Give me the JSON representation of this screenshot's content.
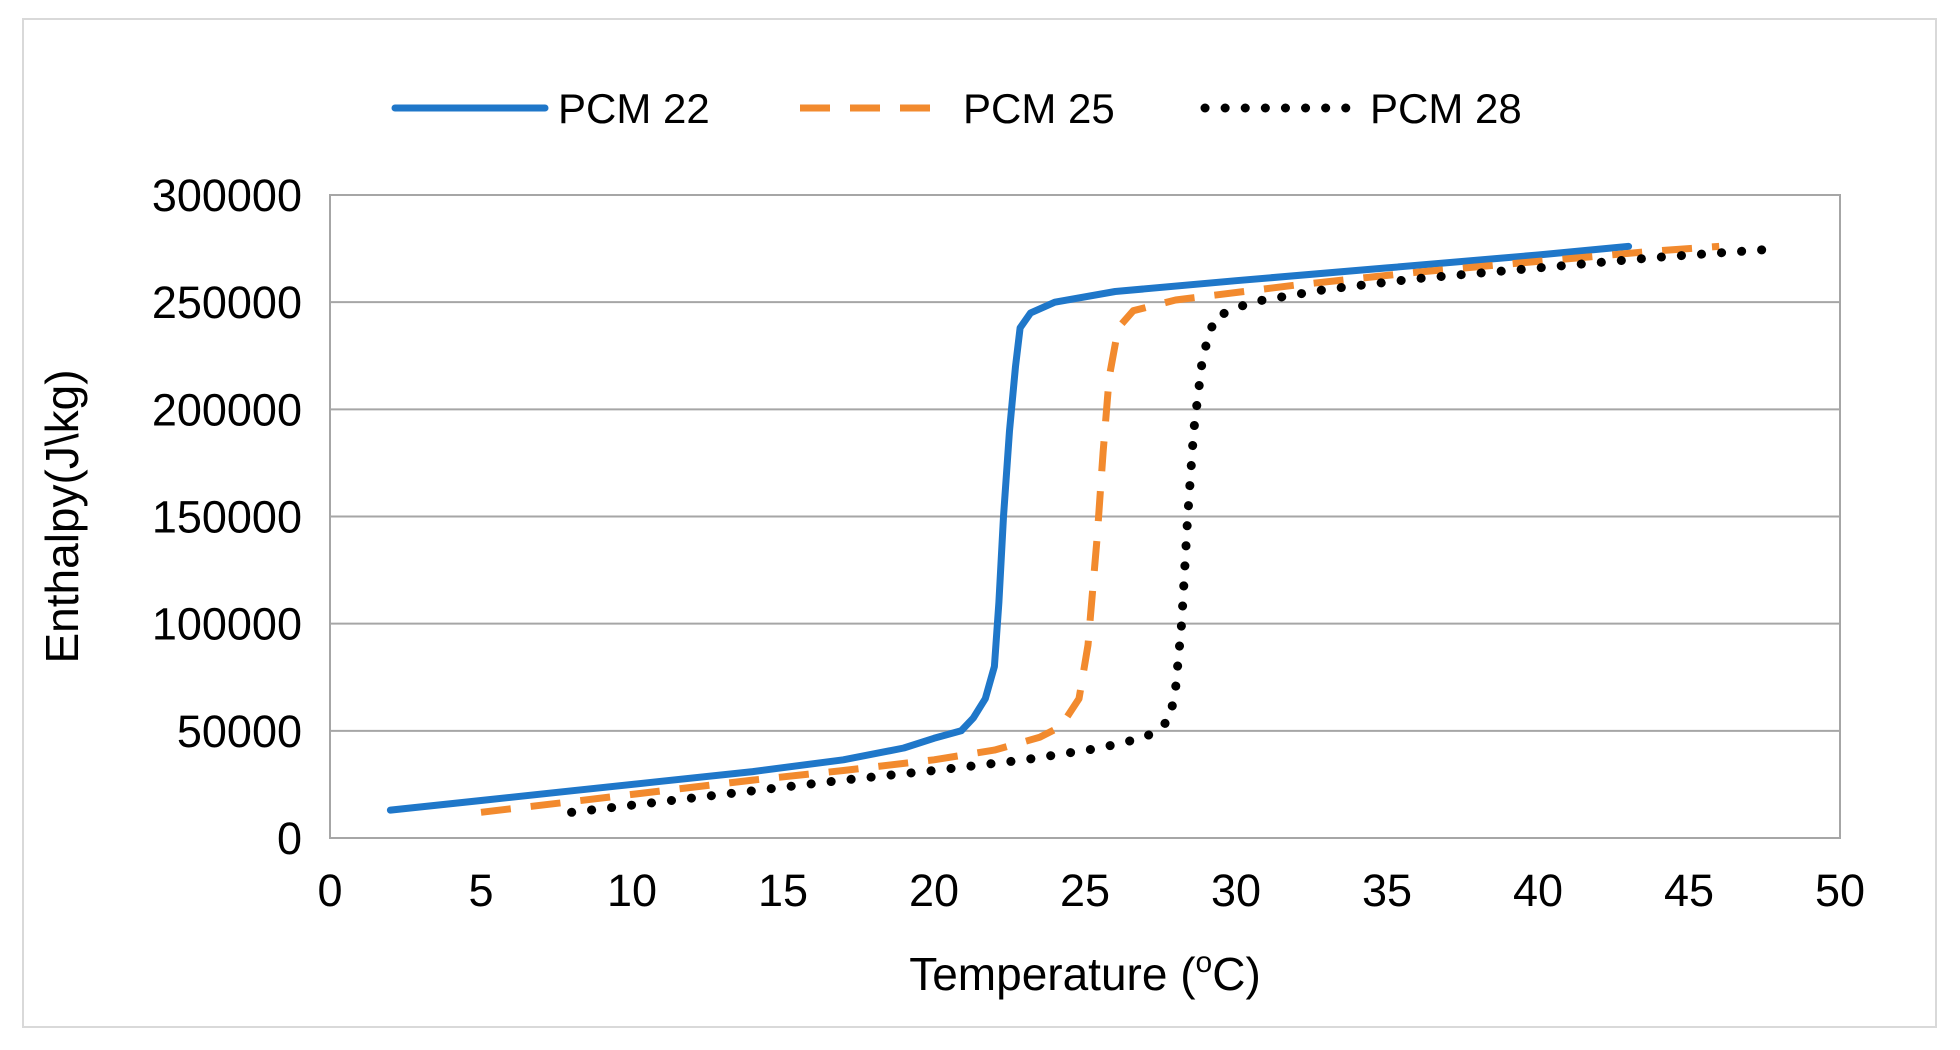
{
  "chart_data": {
    "type": "line",
    "title": "",
    "xlabel_prefix": "Temperature (",
    "xlabel_sup": "o",
    "xlabel_suffix": "C)",
    "ylabel": "Enthalpy(J\\kg)",
    "xlim": [
      0,
      50
    ],
    "ylim": [
      0,
      300000
    ],
    "xticks": [
      0,
      5,
      10,
      15,
      20,
      25,
      30,
      35,
      40,
      45,
      50
    ],
    "yticks": [
      0,
      50000,
      100000,
      150000,
      200000,
      250000,
      300000
    ],
    "xtick_labels": [
      "0",
      "5",
      "10",
      "15",
      "20",
      "25",
      "30",
      "35",
      "40",
      "45",
      "50"
    ],
    "ytick_labels": [
      "0",
      "50000",
      "100000",
      "150000",
      "200000",
      "250000",
      "300000"
    ],
    "grid": "horizontal",
    "legend_position": "top-center",
    "series": [
      {
        "name": "PCM 22",
        "color": "#1f77c9",
        "style": "solid",
        "points": [
          [
            2,
            13000
          ],
          [
            5,
            17500
          ],
          [
            8,
            22000
          ],
          [
            11,
            26500
          ],
          [
            14,
            31000
          ],
          [
            17,
            36500
          ],
          [
            19,
            42000
          ],
          [
            20,
            46500
          ],
          [
            20.9,
            50000
          ],
          [
            21.3,
            56000
          ],
          [
            21.7,
            65000
          ],
          [
            22.0,
            80000
          ],
          [
            22.15,
            110000
          ],
          [
            22.3,
            150000
          ],
          [
            22.5,
            190000
          ],
          [
            22.7,
            220000
          ],
          [
            22.85,
            238000
          ],
          [
            23.2,
            245000
          ],
          [
            24,
            250000
          ],
          [
            26,
            255000
          ],
          [
            30,
            260000
          ],
          [
            35,
            266000
          ],
          [
            40,
            272000
          ],
          [
            43,
            276000
          ]
        ]
      },
      {
        "name": "PCM 25",
        "color": "#f28a2e",
        "style": "dashed",
        "points": [
          [
            5,
            12000
          ],
          [
            8,
            17000
          ],
          [
            11,
            22000
          ],
          [
            14,
            27000
          ],
          [
            17,
            31500
          ],
          [
            20,
            36500
          ],
          [
            22,
            41000
          ],
          [
            23.5,
            47000
          ],
          [
            24.2,
            52000
          ],
          [
            24.8,
            65000
          ],
          [
            25.1,
            90000
          ],
          [
            25.4,
            140000
          ],
          [
            25.6,
            180000
          ],
          [
            25.8,
            215000
          ],
          [
            26.1,
            238000
          ],
          [
            26.6,
            246000
          ],
          [
            28,
            251000
          ],
          [
            32,
            258000
          ],
          [
            36,
            264000
          ],
          [
            40,
            269000
          ],
          [
            44,
            274000
          ],
          [
            46,
            276000
          ]
        ]
      },
      {
        "name": "PCM 28",
        "color": "#000000",
        "style": "dotted",
        "points": [
          [
            8,
            12000
          ],
          [
            11,
            17000
          ],
          [
            14,
            22000
          ],
          [
            17,
            27000
          ],
          [
            20,
            31500
          ],
          [
            23,
            36500
          ],
          [
            25.5,
            42000
          ],
          [
            27,
            47000
          ],
          [
            27.8,
            55000
          ],
          [
            28.0,
            70000
          ],
          [
            28.2,
            100000
          ],
          [
            28.4,
            150000
          ],
          [
            28.6,
            190000
          ],
          [
            28.9,
            225000
          ],
          [
            29.3,
            243000
          ],
          [
            30.5,
            250000
          ],
          [
            33,
            256000
          ],
          [
            36,
            261000
          ],
          [
            40,
            266000
          ],
          [
            44,
            271000
          ],
          [
            48,
            275000
          ]
        ]
      }
    ]
  }
}
